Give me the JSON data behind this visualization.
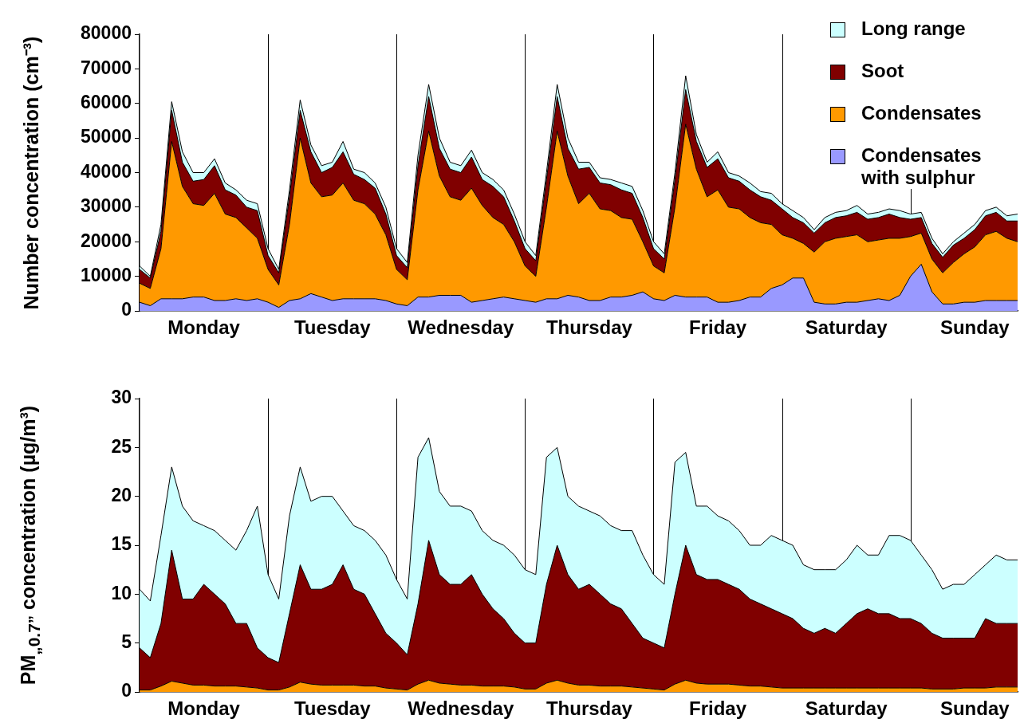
{
  "chart_data": [
    {
      "type": "area",
      "stacked": true,
      "ylabel": "Number concentration (cm⁻³)",
      "legend": "top right",
      "grid": false,
      "marker": "none",
      "categories": [
        null,
        null,
        null,
        null,
        null,
        null,
        "Monday",
        null,
        null,
        null,
        null,
        null,
        null,
        null,
        null,
        null,
        null,
        null,
        "Tuesday",
        null,
        null,
        null,
        null,
        null,
        null,
        null,
        null,
        null,
        null,
        null,
        "Wednesday",
        null,
        null,
        null,
        null,
        null,
        null,
        null,
        null,
        null,
        null,
        null,
        "Thursday",
        null,
        null,
        null,
        null,
        null,
        null,
        null,
        null,
        null,
        null,
        null,
        "Friday",
        null,
        null,
        null,
        null,
        null,
        null,
        null,
        null,
        null,
        null,
        null,
        "Saturday",
        null,
        null,
        null,
        null,
        null,
        null,
        null,
        null,
        null,
        null,
        null,
        "Sunday",
        null,
        null,
        null,
        null
      ],
      "ylim": [
        0,
        80000
      ],
      "yticks": [
        0,
        10000,
        20000,
        30000,
        40000,
        50000,
        60000,
        70000,
        80000
      ],
      "series": [
        {
          "name": "Condensates with sulphur",
          "color": "#9999ff",
          "values": [
            2500,
            1500,
            3500,
            3500,
            3500,
            4000,
            4000,
            3000,
            3000,
            3500,
            3000,
            3500,
            2500,
            1000,
            3000,
            3500,
            5000,
            4000,
            3000,
            3500,
            3500,
            3500,
            3500,
            3000,
            2000,
            1500,
            4000,
            4000,
            4500,
            4500,
            4500,
            2500,
            3000,
            3500,
            4000,
            3500,
            3000,
            2500,
            3500,
            3500,
            4500,
            4000,
            3000,
            3000,
            4000,
            4000,
            4500,
            5500,
            3500,
            3000,
            4500,
            4000,
            4000,
            4000,
            2500,
            2500,
            3000,
            4000,
            4000,
            6500,
            7500,
            9500,
            9500,
            2500,
            2000,
            2000,
            2500,
            2500,
            3000,
            3500,
            3000,
            4500,
            10000,
            13500,
            5500,
            2000,
            2000,
            2500,
            2500,
            3000,
            3000,
            3000,
            3000
          ]
        },
        {
          "name": "Condensates",
          "color": "#ff9900",
          "values": [
            5500,
            5000,
            14500,
            45500,
            32500,
            27000,
            26500,
            31000,
            25000,
            23500,
            21000,
            17500,
            9500,
            6500,
            22000,
            46500,
            32000,
            29000,
            30500,
            33500,
            28500,
            27500,
            24500,
            19000,
            10000,
            7500,
            31000,
            48000,
            34500,
            28500,
            27500,
            33000,
            27500,
            23500,
            21000,
            16500,
            10000,
            7500,
            26500,
            48500,
            34500,
            27000,
            31000,
            26500,
            25000,
            23000,
            22000,
            14500,
            9500,
            8000,
            25500,
            50000,
            37000,
            29000,
            32500,
            27500,
            26500,
            23000,
            21500,
            18500,
            14500,
            11500,
            10000,
            14500,
            18000,
            19000,
            19000,
            19500,
            17000,
            17000,
            18000,
            16500,
            11500,
            9000,
            9500,
            9000,
            12000,
            14000,
            16000,
            19000,
            20000,
            18000,
            17000
          ]
        },
        {
          "name": "Soot",
          "color": "#800000",
          "values": [
            4000,
            3000,
            5000,
            9000,
            7000,
            6500,
            7500,
            8000,
            7000,
            6500,
            6000,
            8000,
            4000,
            3500,
            8000,
            8000,
            9000,
            7000,
            8000,
            9000,
            7500,
            7000,
            7500,
            6000,
            4000,
            3500,
            7000,
            10000,
            8000,
            8000,
            8000,
            9000,
            7500,
            9000,
            8000,
            6000,
            5000,
            4500,
            8000,
            10000,
            8000,
            10000,
            7500,
            7500,
            7500,
            8000,
            7500,
            7000,
            5000,
            4000,
            8000,
            10000,
            8000,
            8500,
            9000,
            8500,
            8000,
            8000,
            7500,
            7000,
            7500,
            6000,
            6000,
            5500,
            5500,
            6000,
            6000,
            6500,
            6500,
            6500,
            7000,
            6000,
            5000,
            4500,
            4500,
            4500,
            5000,
            4500,
            5000,
            5500,
            5500,
            5000,
            6000
          ]
        },
        {
          "name": "Long range",
          "color": "#ccffff",
          "values": [
            1000,
            500,
            2000,
            2500,
            3000,
            2500,
            2000,
            2000,
            2000,
            1500,
            2000,
            2000,
            2000,
            1000,
            2000,
            3000,
            2000,
            2000,
            1500,
            3000,
            1500,
            2000,
            1500,
            2000,
            2000,
            1500,
            3000,
            3500,
            3000,
            2000,
            2000,
            2000,
            2000,
            2000,
            2000,
            2000,
            2000,
            1500,
            2000,
            3500,
            3000,
            2000,
            1500,
            1500,
            1500,
            2000,
            2000,
            2000,
            2000,
            1500,
            2000,
            4000,
            2000,
            1500,
            2000,
            1500,
            1500,
            2000,
            1500,
            2000,
            1500,
            2000,
            1500,
            1000,
            1500,
            1500,
            1500,
            2000,
            1500,
            1500,
            1500,
            2000,
            1500,
            1500,
            1500,
            1000,
            1000,
            1500,
            1500,
            1500,
            1500,
            1500,
            2000
          ]
        }
      ]
    },
    {
      "type": "area",
      "stacked": true,
      "ylabel": "PM$_{„0.7”}$ concentration (µg/m³)",
      "grid": false,
      "marker": "none",
      "categories": [
        null,
        null,
        null,
        null,
        null,
        null,
        "Monday",
        null,
        null,
        null,
        null,
        null,
        null,
        null,
        null,
        null,
        null,
        null,
        "Tuesday",
        null,
        null,
        null,
        null,
        null,
        null,
        null,
        null,
        null,
        null,
        null,
        "Wednesday",
        null,
        null,
        null,
        null,
        null,
        null,
        null,
        null,
        null,
        null,
        null,
        "Thursday",
        null,
        null,
        null,
        null,
        null,
        null,
        null,
        null,
        null,
        null,
        null,
        "Friday",
        null,
        null,
        null,
        null,
        null,
        null,
        null,
        null,
        null,
        null,
        null,
        "Saturday",
        null,
        null,
        null,
        null,
        null,
        null,
        null,
        null,
        null,
        null,
        null,
        "Sunday",
        null,
        null,
        null,
        null
      ],
      "ylim": [
        0,
        30
      ],
      "yticks": [
        0,
        5,
        10,
        15,
        20,
        25,
        30
      ],
      "series": [
        {
          "color": "#ff9900",
          "values": [
            0.2,
            0.2,
            0.6,
            1.1,
            0.9,
            0.7,
            0.7,
            0.6,
            0.6,
            0.6,
            0.5,
            0.4,
            0.2,
            0.2,
            0.5,
            1,
            0.8,
            0.7,
            0.7,
            0.7,
            0.7,
            0.6,
            0.6,
            0.4,
            0.3,
            0.2,
            0.8,
            1.2,
            0.9,
            0.8,
            0.7,
            0.7,
            0.6,
            0.6,
            0.6,
            0.5,
            0.3,
            0.3,
            0.9,
            1.2,
            0.9,
            0.7,
            0.7,
            0.6,
            0.6,
            0.6,
            0.5,
            0.4,
            0.3,
            0.2,
            0.8,
            1.2,
            0.9,
            0.8,
            0.8,
            0.8,
            0.7,
            0.6,
            0.6,
            0.5,
            0.4,
            0.4,
            0.4,
            0.4,
            0.4,
            0.4,
            0.4,
            0.4,
            0.4,
            0.4,
            0.4,
            0.4,
            0.4,
            0.4,
            0.3,
            0.3,
            0.3,
            0.4,
            0.4,
            0.4,
            0.5,
            0.5,
            0.5
          ]
        },
        {
          "color": "#800000",
          "values": [
            4.3,
            3.3,
            6.4,
            13.4,
            8.6,
            8.8,
            10.3,
            9.4,
            8.4,
            6.4,
            6.5,
            4.1,
            3.3,
            2.8,
            7.5,
            12,
            9.7,
            9.8,
            10.3,
            12.3,
            9.8,
            9.4,
            7.4,
            5.6,
            4.7,
            3.6,
            8.2,
            14.3,
            11.1,
            10.2,
            10.3,
            11.3,
            9.4,
            7.9,
            6.9,
            5.5,
            4.7,
            4.7,
            10.1,
            13.8,
            11.1,
            9.8,
            10.3,
            9.4,
            8.4,
            7.9,
            6.5,
            5.1,
            4.7,
            4.3,
            9.2,
            13.8,
            11.1,
            10.7,
            10.7,
            10.2,
            9.8,
            8.9,
            8.4,
            8,
            7.6,
            7.1,
            6.1,
            5.6,
            6.1,
            5.6,
            6.6,
            7.6,
            8.1,
            7.6,
            7.6,
            7.1,
            7.1,
            6.6,
            5.7,
            5.2,
            5.2,
            5.1,
            5.1,
            7.1,
            6.5,
            6.5,
            6.5
          ]
        },
        {
          "color": "#ccffff",
          "values": [
            6,
            5.8,
            9,
            8.5,
            9.5,
            8,
            6,
            6.5,
            6.5,
            7.5,
            9.5,
            14.5,
            8.5,
            6.5,
            10,
            10,
            9,
            9.5,
            9,
            5.5,
            6.5,
            6.5,
            7.5,
            8,
            6.5,
            5.7,
            15,
            10.5,
            8.5,
            8,
            8,
            6.5,
            6.5,
            7,
            7.5,
            8,
            7.5,
            7,
            13,
            10,
            8,
            8.5,
            7.5,
            8,
            8,
            8,
            9.5,
            8.5,
            7,
            6.5,
            13.5,
            9.5,
            7,
            7.5,
            6.5,
            6.5,
            6,
            5.5,
            6,
            7.5,
            7.5,
            7.5,
            6.5,
            6.5,
            6,
            6.5,
            6.5,
            7,
            5.5,
            6,
            8,
            8.5,
            8,
            7,
            6.5,
            5,
            5.5,
            5.5,
            6.5,
            5.5,
            7,
            6.5,
            6.5
          ]
        }
      ]
    }
  ]
}
